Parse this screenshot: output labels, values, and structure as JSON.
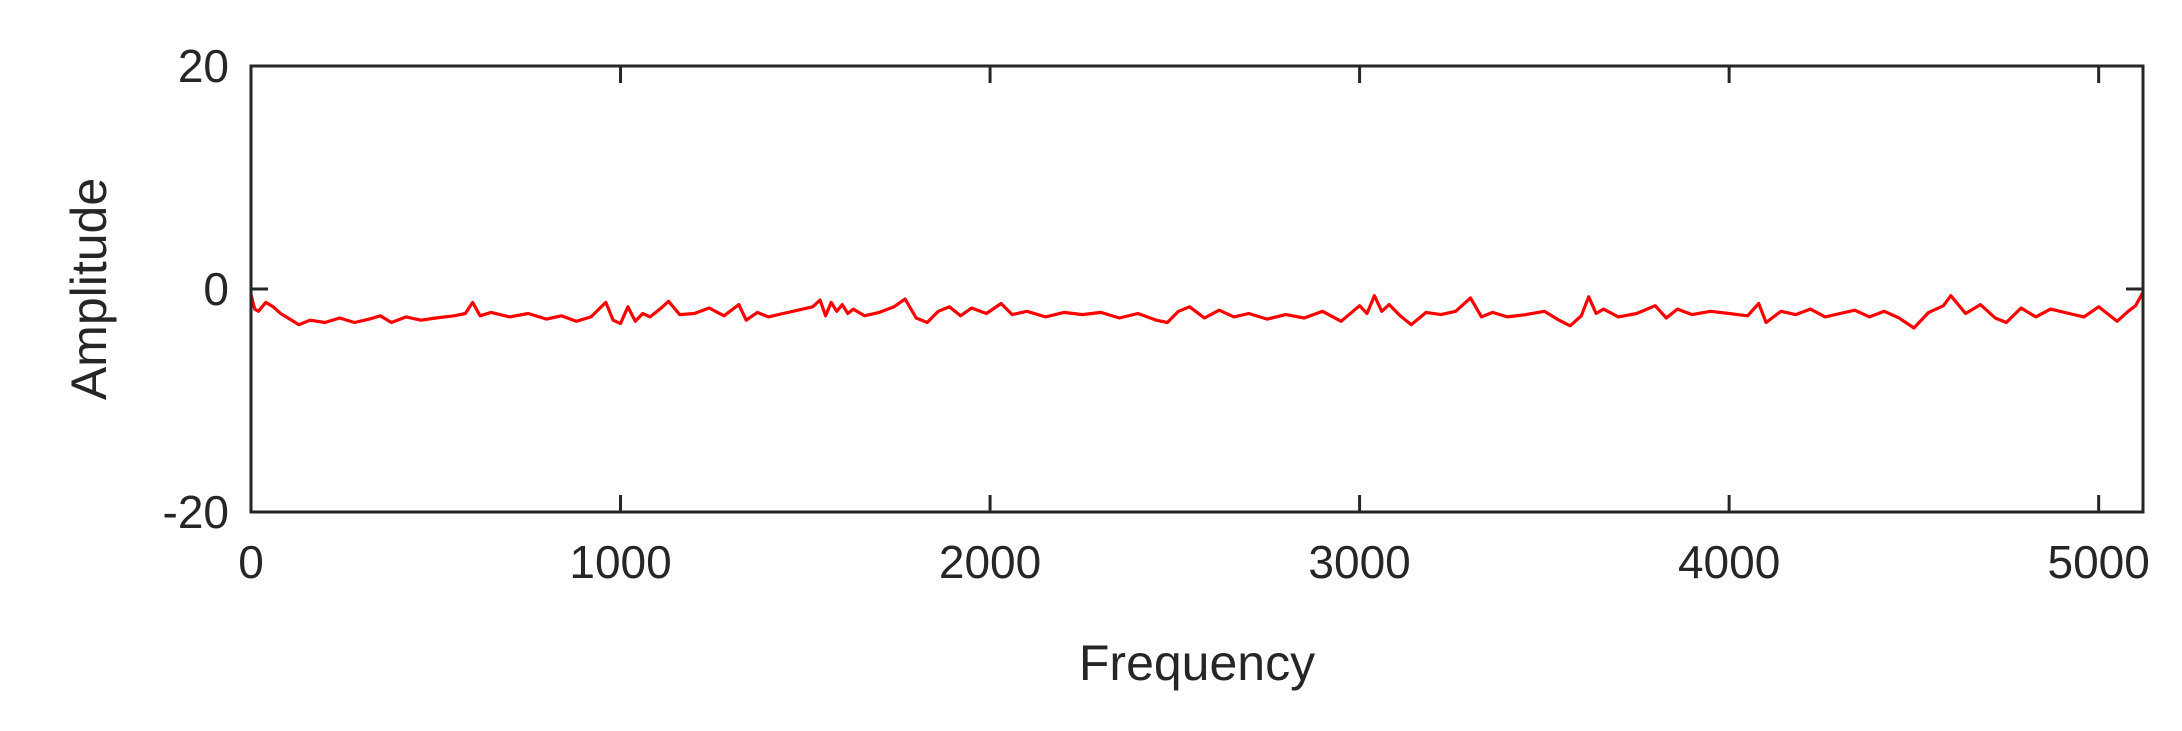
{
  "chart_data": {
    "type": "line",
    "title": "",
    "xlabel": "Frequency",
    "ylabel": "Amplitude",
    "xlim": [
      0,
      5120
    ],
    "ylim": [
      -20,
      20
    ],
    "x_ticks": [
      0,
      1000,
      2000,
      3000,
      4000,
      5000
    ],
    "y_ticks": [
      -20,
      0,
      20
    ],
    "grid": false,
    "line_color": "#ff0000",
    "axis_color": "#262626",
    "series": [
      {
        "x": [
          0,
          10,
          20,
          40,
          60,
          80,
          100,
          130,
          160,
          200,
          240,
          280,
          320,
          350,
          380,
          420,
          460,
          500,
          550,
          580,
          600,
          620,
          650,
          700,
          750,
          800,
          840,
          880,
          920,
          960,
          980,
          1000,
          1020,
          1040,
          1060,
          1080,
          1110,
          1130,
          1160,
          1200,
          1240,
          1280,
          1320,
          1340,
          1370,
          1400,
          1440,
          1480,
          1520,
          1540,
          1555,
          1570,
          1585,
          1600,
          1615,
          1630,
          1660,
          1700,
          1740,
          1770,
          1800,
          1830,
          1860,
          1890,
          1920,
          1950,
          1990,
          2030,
          2060,
          2100,
          2150,
          2200,
          2250,
          2300,
          2350,
          2400,
          2450,
          2480,
          2510,
          2540,
          2580,
          2620,
          2660,
          2700,
          2750,
          2800,
          2850,
          2900,
          2950,
          3000,
          3020,
          3040,
          3060,
          3080,
          3110,
          3140,
          3180,
          3220,
          3260,
          3300,
          3330,
          3360,
          3400,
          3450,
          3500,
          3540,
          3570,
          3600,
          3620,
          3640,
          3660,
          3700,
          3750,
          3800,
          3830,
          3860,
          3900,
          3950,
          4000,
          4050,
          4080,
          4100,
          4140,
          4180,
          4220,
          4260,
          4300,
          4340,
          4380,
          4420,
          4460,
          4500,
          4540,
          4580,
          4600,
          4640,
          4680,
          4720,
          4750,
          4790,
          4830,
          4870,
          4920,
          4960,
          5000,
          5050,
          5080,
          5100,
          5120
        ],
        "y": [
          -0.5,
          -1.8,
          -2.0,
          -1.2,
          -1.6,
          -2.2,
          -2.6,
          -3.2,
          -2.8,
          -3.0,
          -2.6,
          -3.0,
          -2.7,
          -2.4,
          -3.0,
          -2.5,
          -2.8,
          -2.6,
          -2.4,
          -2.2,
          -1.2,
          -2.4,
          -2.1,
          -2.5,
          -2.2,
          -2.7,
          -2.4,
          -2.9,
          -2.5,
          -1.2,
          -2.8,
          -3.1,
          -1.6,
          -2.9,
          -2.2,
          -2.5,
          -1.7,
          -1.1,
          -2.3,
          -2.2,
          -1.7,
          -2.4,
          -1.4,
          -2.8,
          -2.1,
          -2.5,
          -2.2,
          -1.9,
          -1.6,
          -1.0,
          -2.4,
          -1.2,
          -2.0,
          -1.4,
          -2.2,
          -1.8,
          -2.4,
          -2.1,
          -1.6,
          -0.9,
          -2.6,
          -3.0,
          -2.0,
          -1.6,
          -2.4,
          -1.7,
          -2.2,
          -1.3,
          -2.3,
          -2.0,
          -2.5,
          -2.1,
          -2.3,
          -2.1,
          -2.6,
          -2.2,
          -2.8,
          -3.0,
          -2.0,
          -1.6,
          -2.6,
          -1.9,
          -2.5,
          -2.2,
          -2.7,
          -2.3,
          -2.6,
          -2.0,
          -2.9,
          -1.5,
          -2.2,
          -0.6,
          -2.0,
          -1.4,
          -2.4,
          -3.2,
          -2.1,
          -2.3,
          -2.0,
          -0.8,
          -2.5,
          -2.1,
          -2.5,
          -2.3,
          -2.0,
          -2.8,
          -3.3,
          -2.4,
          -0.7,
          -2.2,
          -1.8,
          -2.5,
          -2.2,
          -1.5,
          -2.6,
          -1.8,
          -2.3,
          -2.0,
          -2.2,
          -2.4,
          -1.3,
          -3.0,
          -2.0,
          -2.3,
          -1.8,
          -2.5,
          -2.2,
          -1.9,
          -2.5,
          -2.0,
          -2.6,
          -3.5,
          -2.1,
          -1.5,
          -0.6,
          -2.2,
          -1.4,
          -2.6,
          -3.0,
          -1.7,
          -2.5,
          -1.8,
          -2.2,
          -2.5,
          -1.6,
          -2.9,
          -2.0,
          -1.5,
          -0.3
        ]
      }
    ]
  }
}
